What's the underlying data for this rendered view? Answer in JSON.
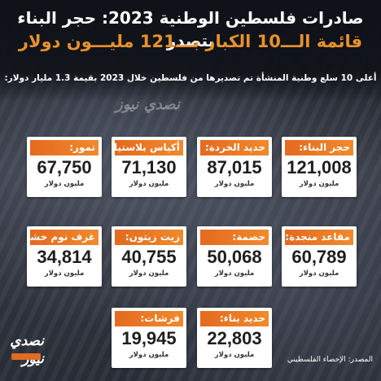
{
  "header": {
    "title": "صادرات فلسطين الوطنية 2023: حجر البناء يتصدر",
    "subtitle": "قائمة الـــ10 الكبار بـــ121 مليـــون دولار",
    "description": "أعلى 10 سلع وطنية المنشأة تم تصديرها من فلسطين خلال 2023 بقيمة 1.3 مليار دولار:"
  },
  "colors": {
    "accent": "#e8912c",
    "label_bg": "#e46a1f",
    "card_bg": "#ffffff"
  },
  "unit_label": "مليون دولار",
  "items": [
    {
      "label": "حجر البناء:",
      "value": "121,008",
      "unit": "مليون دولار"
    },
    {
      "label": "حديد الخردة:",
      "value": "87,015",
      "unit": "مليون دولار"
    },
    {
      "label": "أكياس بلاستيك:",
      "value": "71,130",
      "unit": "مليون دولار"
    },
    {
      "label": "تمور:",
      "value": "67,750",
      "unit": "مليون دولار"
    },
    {
      "label": "مقاعد منجدة:",
      "value": "60,789",
      "unit": "مليون دولار"
    },
    {
      "label": "حصمة:",
      "value": "50,068",
      "unit": "مليون دولار"
    },
    {
      "label": "زيت زيتون:",
      "value": "40,755",
      "unit": "مليون دولار"
    },
    {
      "label": "غرف نوم خشبية:",
      "value": "34,814",
      "unit": "مليون دولار"
    },
    {
      "label": "حديد بناء:",
      "value": "22,803",
      "unit": "مليون دولار"
    },
    {
      "label": "فرشات:",
      "value": "19,945",
      "unit": "مليون دولار"
    }
  ],
  "footer": {
    "source": "المصدر: الإحصاء الفلسطيني",
    "logo_text": "نصدي نيوز",
    "logo_icon": "brand-logo-icon"
  },
  "watermark_text": "نصدي نيوز"
}
